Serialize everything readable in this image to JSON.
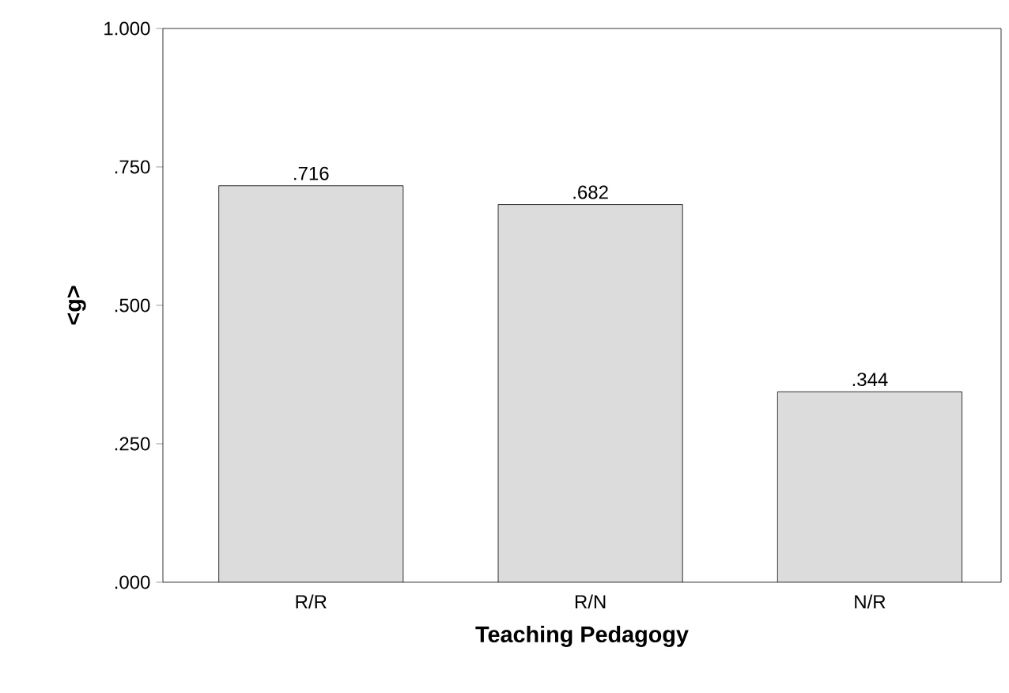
{
  "chart_data": {
    "type": "bar",
    "xlabel": "Teaching Pedagogy",
    "ylabel": "<g>",
    "categories": [
      "R/R",
      "R/N",
      "N/R"
    ],
    "values": [
      0.716,
      0.682,
      0.344
    ],
    "value_labels": [
      ".716",
      ".682",
      ".344"
    ],
    "color": "#dcdcdc",
    "ylim": [
      0,
      1
    ],
    "yticks": [
      {
        "value": 0,
        "label": ".000"
      },
      {
        "value": 0.25,
        "label": ".250"
      },
      {
        "value": 0.5,
        "label": ".500"
      },
      {
        "value": 0.75,
        "label": ".750"
      },
      {
        "value": 1,
        "label": "1.000"
      }
    ]
  }
}
